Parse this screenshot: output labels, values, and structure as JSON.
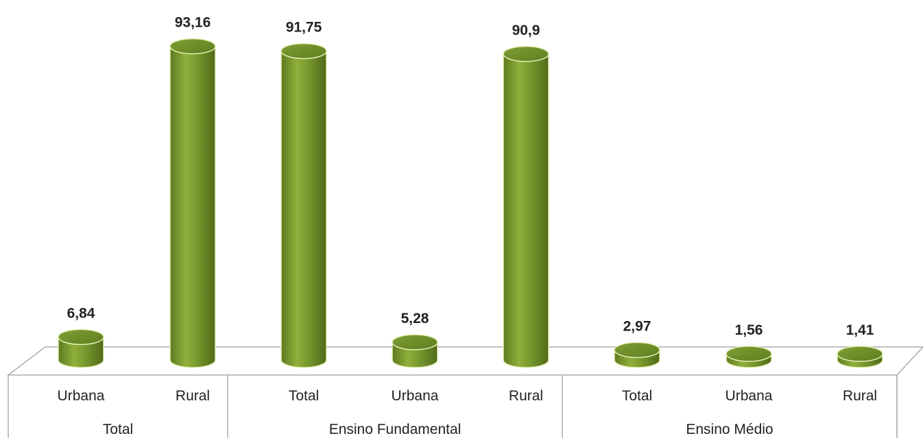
{
  "chart_data": {
    "type": "bar",
    "style": "3d-cylinder",
    "bar_color": "#6f8f2a",
    "bar_highlight": "#9dbd4a",
    "bar_edge": "#e6f0b8",
    "ylim": [
      0,
      100
    ],
    "groups": [
      {
        "name": "Total",
        "categories": [
          "Urbana",
          "Rural"
        ]
      },
      {
        "name": "Ensino Fundamental",
        "categories": [
          "Total",
          "Urbana",
          "Rural"
        ]
      },
      {
        "name": "Ensino Médio",
        "categories": [
          "Total",
          "Urbana",
          "Rural"
        ]
      }
    ],
    "categories": [
      "Urbana",
      "Rural",
      "Total",
      "Urbana",
      "Rural",
      "Total",
      "Urbana",
      "Rural"
    ],
    "values": [
      6.84,
      93.16,
      91.75,
      5.28,
      90.9,
      2.97,
      1.56,
      1.41
    ],
    "value_labels": [
      "6,84",
      "93,16",
      "91,75",
      "5,28",
      "90,9",
      "2,97",
      "1,56",
      "1,41"
    ],
    "title": "",
    "xlabel": "",
    "ylabel": "",
    "grid": false,
    "legend": "none"
  }
}
